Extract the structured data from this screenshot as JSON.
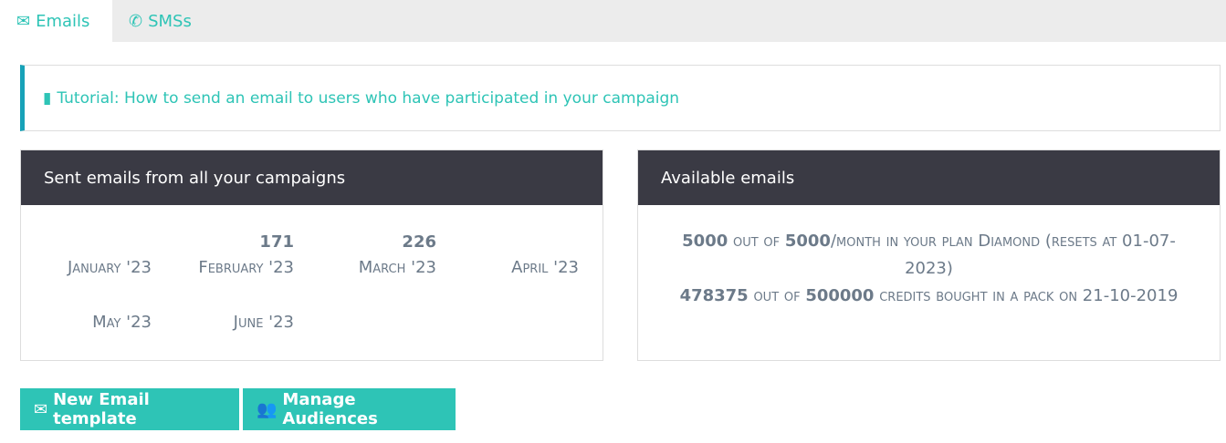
{
  "tabs": [
    {
      "label": "Emails",
      "icon": "envelope-icon"
    },
    {
      "label": "SMSs",
      "icon": "phone-icon"
    }
  ],
  "tutorial": {
    "label": "Tutorial: How to send an email to users who have participated in your campaign"
  },
  "sent": {
    "title": "Sent emails from all your campaigns",
    "months": [
      {
        "label": "January '23",
        "count": ""
      },
      {
        "label": "February '23",
        "count": "171"
      },
      {
        "label": "March '23",
        "count": "226"
      },
      {
        "label": "April '23",
        "count": ""
      },
      {
        "label": "May '23",
        "count": ""
      },
      {
        "label": "June '23",
        "count": ""
      }
    ]
  },
  "available": {
    "title": "Available emails",
    "plan": {
      "used": "5000",
      "out_of": "out of",
      "total": "5000",
      "text": "/month in your plan Diamond (resets at 01-07-2023)"
    },
    "pack": {
      "used": "478375",
      "out_of": "out of",
      "total": "500000",
      "text": "credits bought in a pack on 21-10-2019"
    }
  },
  "buttons": {
    "new_template": "New Email template",
    "manage_audiences": "Manage Audiences"
  },
  "colors": {
    "accent": "#2ec4b6",
    "header": "#3a3a44",
    "tutorial_border": "#17a2b8"
  }
}
